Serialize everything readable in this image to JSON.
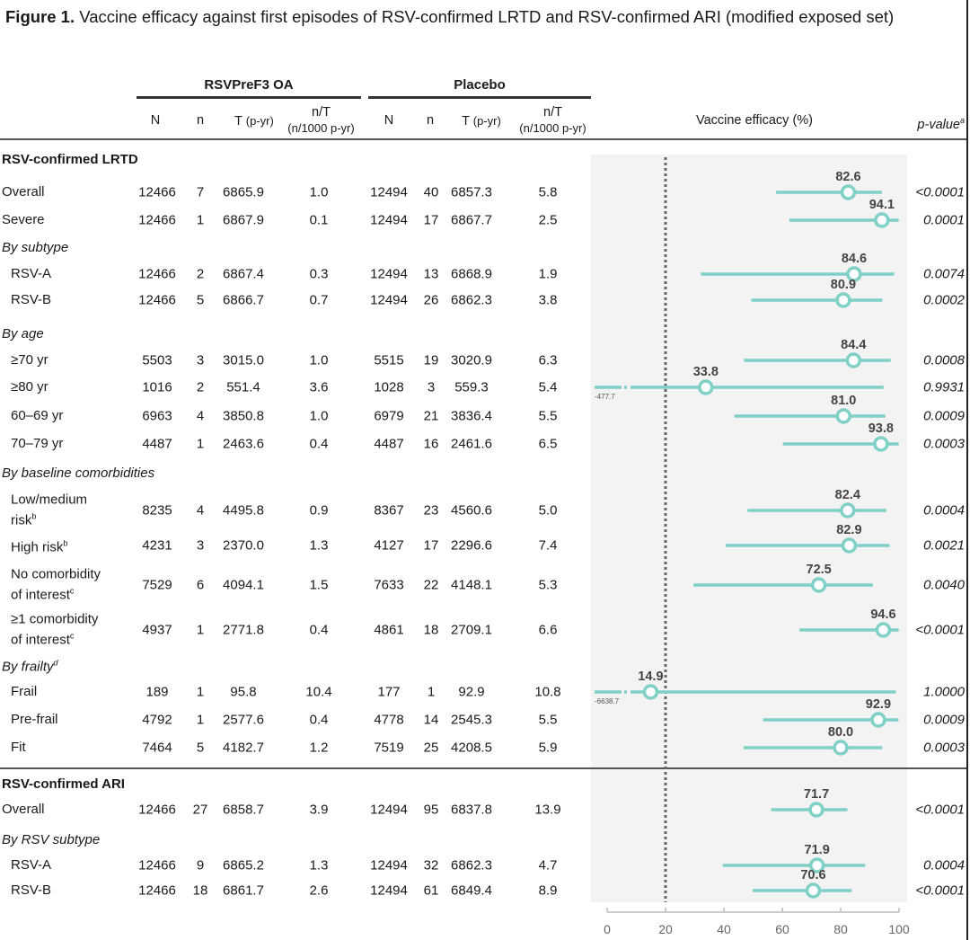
{
  "figure": {
    "title_bold": "Figure 1.",
    "title_rest": " Vaccine efficacy against first episodes of RSV-confirmed LRTD and RSV-confirmed ARI (modified exposed set)"
  },
  "groups": {
    "vaccine": "RSVPreF3 OA",
    "placebo": "Placebo"
  },
  "columns": {
    "N": "N",
    "n": "n",
    "T": "T",
    "T_unit": "(p-yr)",
    "rate": "n/T",
    "rate_unit": "(n/1000 p-yr)",
    "ve": "Vaccine efficacy (%)",
    "pvalue": "p-value",
    "pvalue_sup": "a"
  },
  "chart_data": {
    "type": "forest",
    "title": "Vaccine efficacy against first episodes of RSV-confirmed LRTD and RSV-confirmed ARI (modified exposed set)",
    "xlabel": "Vaccine efficacy (%)",
    "xlim": [
      0,
      100
    ],
    "xticks": [
      0,
      20,
      40,
      60,
      80,
      100
    ],
    "reference_line": 20,
    "rows": [
      {
        "kind": "section",
        "label": "RSV-confirmed LRTD"
      },
      {
        "kind": "data",
        "label": "Overall",
        "indent": false,
        "v_N": "12466",
        "v_n": "7",
        "v_T": "6865.9",
        "v_rate": "1.0",
        "p_N": "12494",
        "p_n": "40",
        "p_T": "6857.3",
        "p_rate": "5.8",
        "ve": 82.6,
        "ci_low": 57.9,
        "ci_high": 94.1,
        "p": "<0.0001"
      },
      {
        "kind": "data",
        "label": "Severe",
        "indent": false,
        "v_N": "12466",
        "v_n": "1",
        "v_T": "6867.9",
        "v_rate": "0.1",
        "p_N": "12494",
        "p_n": "17",
        "p_T": "6867.7",
        "p_rate": "2.5",
        "ve": 94.1,
        "ci_low": 62.4,
        "ci_high": 99.9,
        "p": "0.0001"
      },
      {
        "kind": "subhead",
        "label": "By subtype"
      },
      {
        "kind": "data",
        "label": "RSV-A",
        "indent": true,
        "v_N": "12466",
        "v_n": "2",
        "v_T": "6867.4",
        "v_rate": "0.3",
        "p_N": "12494",
        "p_n": "13",
        "p_T": "6868.9",
        "p_rate": "1.9",
        "ve": 84.6,
        "ci_low": 32.1,
        "ci_high": 98.3,
        "p": "0.0074"
      },
      {
        "kind": "data",
        "label": "RSV-B",
        "indent": true,
        "v_N": "12466",
        "v_n": "5",
        "v_T": "6866.7",
        "v_rate": "0.7",
        "p_N": "12494",
        "p_n": "26",
        "p_T": "6862.3",
        "p_rate": "3.8",
        "ve": 80.9,
        "ci_low": 49.4,
        "ci_high": 94.3,
        "p": "0.0002"
      },
      {
        "kind": "subhead",
        "label": "By age"
      },
      {
        "kind": "data",
        "label": "≥70 yr",
        "indent": true,
        "v_N": "5503",
        "v_n": "3",
        "v_T": "3015.0",
        "v_rate": "1.0",
        "p_N": "5515",
        "p_n": "19",
        "p_T": "3020.9",
        "p_rate": "6.3",
        "ve": 84.4,
        "ci_low": 46.9,
        "ci_high": 97.1,
        "p": "0.0008"
      },
      {
        "kind": "data",
        "label": "≥80 yr",
        "indent": true,
        "v_N": "1016",
        "v_n": "2",
        "v_T": "551.4",
        "v_rate": "3.6",
        "p_N": "1028",
        "p_n": "3",
        "p_T": "559.3",
        "p_rate": "5.4",
        "ve": 33.8,
        "ci_low": -477.7,
        "ci_high": 94.7,
        "p": "0.9931",
        "ci_low_label": "-477.7"
      },
      {
        "kind": "data",
        "label": "60–69 yr",
        "indent": true,
        "v_N": "6963",
        "v_n": "4",
        "v_T": "3850.8",
        "v_rate": "1.0",
        "p_N": "6979",
        "p_n": "21",
        "p_T": "3836.4",
        "p_rate": "5.5",
        "ve": 81.0,
        "ci_low": 43.6,
        "ci_high": 95.3,
        "p": "0.0009"
      },
      {
        "kind": "data",
        "label": "70–79 yr",
        "indent": true,
        "v_N": "4487",
        "v_n": "1",
        "v_T": "2463.6",
        "v_rate": "0.4",
        "p_N": "4487",
        "p_n": "16",
        "p_T": "2461.6",
        "p_rate": "6.5",
        "ve": 93.8,
        "ci_low": 60.2,
        "ci_high": 99.9,
        "p": "0.0003"
      },
      {
        "kind": "subhead",
        "label": "By baseline comorbidities"
      },
      {
        "kind": "data",
        "label": "Low/medium",
        "label2": "risk",
        "sup": "b",
        "indent": true,
        "v_N": "8235",
        "v_n": "4",
        "v_T": "4495.8",
        "v_rate": "0.9",
        "p_N": "8367",
        "p_n": "23",
        "p_T": "4560.6",
        "p_rate": "5.0",
        "ve": 82.4,
        "ci_low": 48.1,
        "ci_high": 95.6,
        "p": "0.0004"
      },
      {
        "kind": "data",
        "label": "High risk",
        "sup": "b",
        "indent": true,
        "v_N": "4231",
        "v_n": "3",
        "v_T": "2370.0",
        "v_rate": "1.3",
        "p_N": "4127",
        "p_n": "17",
        "p_T": "2296.6",
        "p_rate": "7.4",
        "ve": 82.9,
        "ci_low": 40.6,
        "ci_high": 96.8,
        "p": "0.0021"
      },
      {
        "kind": "data",
        "label": "No comorbidity",
        "label2": "of interest",
        "sup": "c",
        "indent": true,
        "v_N": "7529",
        "v_n": "6",
        "v_T": "4094.1",
        "v_rate": "1.5",
        "p_N": "7633",
        "p_n": "22",
        "p_T": "4148.1",
        "p_rate": "5.3",
        "ve": 72.5,
        "ci_low": 29.6,
        "ci_high": 91.0,
        "p": "0.0040"
      },
      {
        "kind": "data",
        "label": "≥1 comorbidity",
        "label2": "of interest",
        "sup": "c",
        "indent": true,
        "v_N": "4937",
        "v_n": "1",
        "v_T": "2771.8",
        "v_rate": "0.4",
        "p_N": "4861",
        "p_n": "18",
        "p_T": "2709.1",
        "p_rate": "6.6",
        "ve": 94.6,
        "ci_low": 65.9,
        "ci_high": 99.9,
        "p": "<0.0001"
      },
      {
        "kind": "subhead",
        "label": "By frailty",
        "sup": "d"
      },
      {
        "kind": "data",
        "label": "Frail",
        "indent": true,
        "v_N": "189",
        "v_n": "1",
        "v_T": "95.8",
        "v_rate": "10.4",
        "p_N": "177",
        "p_n": "1",
        "p_T": "92.9",
        "p_rate": "10.8",
        "ve": 14.9,
        "ci_low": -6638.7,
        "ci_high": 98.9,
        "p": "1.0000",
        "ci_low_label": "-6638.7"
      },
      {
        "kind": "data",
        "label": "Pre-frail",
        "indent": true,
        "v_N": "4792",
        "v_n": "1",
        "v_T": "2577.6",
        "v_rate": "0.4",
        "p_N": "4778",
        "p_n": "14",
        "p_T": "2545.3",
        "p_rate": "5.5",
        "ve": 92.9,
        "ci_low": 53.4,
        "ci_high": 99.8,
        "p": "0.0009"
      },
      {
        "kind": "data",
        "label": "Fit",
        "indent": true,
        "v_N": "7464",
        "v_n": "5",
        "v_T": "4182.7",
        "v_rate": "1.2",
        "p_N": "7519",
        "p_n": "25",
        "p_T": "4208.5",
        "p_rate": "5.9",
        "ve": 80.0,
        "ci_low": 46.7,
        "ci_high": 94.2,
        "p": "0.0003"
      },
      {
        "kind": "section",
        "label": "RSV-confirmed ARI"
      },
      {
        "kind": "data",
        "label": "Overall",
        "indent": false,
        "v_N": "12466",
        "v_n": "27",
        "v_T": "6858.7",
        "v_rate": "3.9",
        "p_N": "12494",
        "p_n": "95",
        "p_T": "6837.8",
        "p_rate": "13.9",
        "ve": 71.7,
        "ci_low": 56.2,
        "ci_high": 82.3,
        "p": "<0.0001"
      },
      {
        "kind": "subhead",
        "label": "By RSV subtype"
      },
      {
        "kind": "data",
        "label": "RSV-A",
        "indent": true,
        "v_N": "12466",
        "v_n": "9",
        "v_T": "6865.2",
        "v_rate": "1.3",
        "p_N": "12494",
        "p_n": "32",
        "p_T": "6862.3",
        "p_rate": "4.7",
        "ve": 71.9,
        "ci_low": 39.6,
        "ci_high": 88.4,
        "p": "0.0004"
      },
      {
        "kind": "data",
        "label": "RSV-B",
        "indent": true,
        "v_N": "12466",
        "v_n": "18",
        "v_T": "6861.7",
        "v_rate": "2.6",
        "p_N": "12494",
        "p_n": "61",
        "p_T": "6849.4",
        "p_rate": "8.9",
        "ve": 70.6,
        "ci_low": 49.8,
        "ci_high": 83.8,
        "p": "<0.0001"
      }
    ]
  },
  "colors": {
    "ci": "#7fd0c6",
    "marker_stroke": "#7fd0c6",
    "panel": "#f3f3f3",
    "ref_line": "#666666",
    "axis": "#bbbbbb"
  }
}
